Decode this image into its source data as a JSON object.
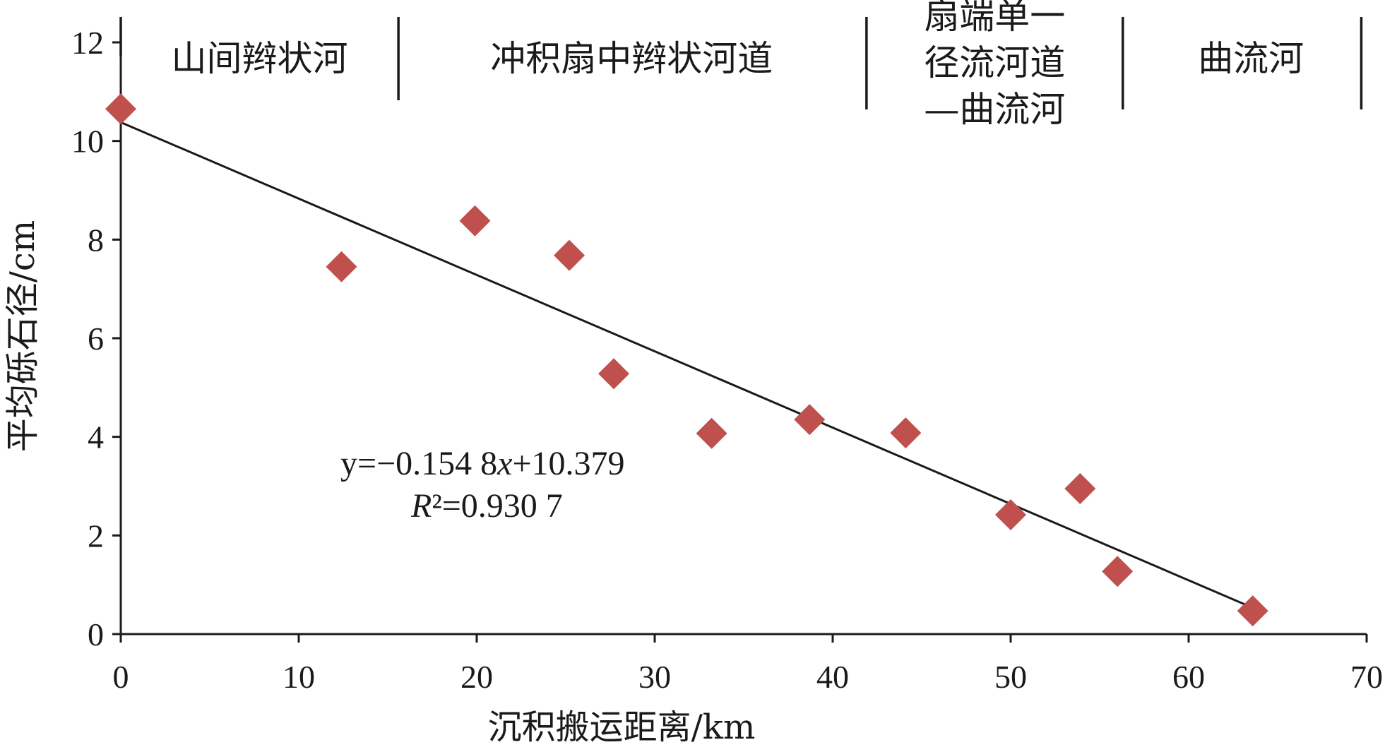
{
  "chart_data": {
    "type": "scatter",
    "xlabel": "沉积搬运距离/km",
    "ylabel": "平均砾石径/cm",
    "xlim": [
      0,
      70
    ],
    "ylim": [
      0,
      12
    ],
    "x_ticks": [
      0,
      10,
      20,
      30,
      40,
      50,
      60,
      70
    ],
    "y_ticks": [
      0,
      2,
      4,
      6,
      8,
      10,
      12
    ],
    "grid": false,
    "legend": "none",
    "marker": "diamond",
    "marker_color": "#c0504d",
    "series": [
      {
        "points": [
          {
            "x": 0,
            "y": 10.65
          },
          {
            "x": 12.4,
            "y": 7.45
          },
          {
            "x": 19.9,
            "y": 8.38
          },
          {
            "x": 25.2,
            "y": 7.68
          },
          {
            "x": 27.7,
            "y": 5.28
          },
          {
            "x": 33.2,
            "y": 4.07
          },
          {
            "x": 38.7,
            "y": 4.35
          },
          {
            "x": 44.1,
            "y": 4.08
          },
          {
            "x": 50.0,
            "y": 2.42
          },
          {
            "x": 53.9,
            "y": 2.95
          },
          {
            "x": 56.0,
            "y": 1.27
          },
          {
            "x": 63.6,
            "y": 0.47
          }
        ]
      }
    ],
    "trendline": {
      "slope": -0.1548,
      "intercept": 10.379,
      "x_range": [
        0,
        63.6
      ],
      "color": "#1a1a1a",
      "equation_text": "y=−0.154 8x+10.379",
      "r2_text": "R²=0.930 7"
    },
    "zones": [
      {
        "lines": [
          "山间辫状河"
        ],
        "x_center": 7.8
      },
      {
        "lines": [
          "冲积扇中辫状河道"
        ],
        "x_center": 28.7
      },
      {
        "lines": [
          "扇端单一",
          "径流河道",
          "—曲流河"
        ],
        "x_center": 49.1
      },
      {
        "lines": [
          "曲流河"
        ],
        "x_center": 63.5
      }
    ],
    "zone_dividers_x": [
      0,
      15.6,
      41.9,
      56.3,
      69.7
    ]
  }
}
